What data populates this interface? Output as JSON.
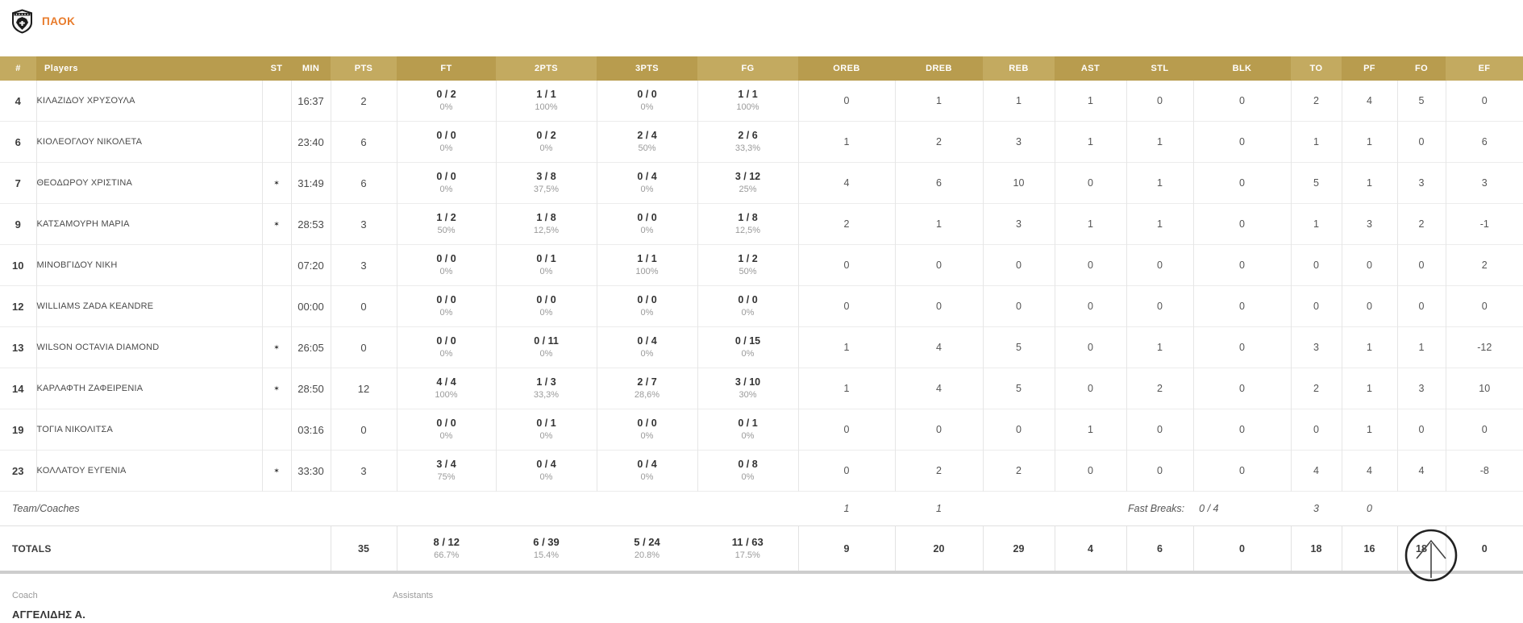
{
  "team": {
    "name": "ΠΑΟΚ"
  },
  "icons": {
    "team_logo": "paok-crest-icon",
    "annotation": "up-arrow-cursor-icon"
  },
  "colors": {
    "header_gold": "#b89c4e",
    "header_gold_light": "#c3aa60",
    "accent_orange": "#e87b2b"
  },
  "starter_mark": "✶",
  "table": {
    "columns": [
      {
        "key": "num",
        "label": "#"
      },
      {
        "key": "name",
        "label": "Players"
      },
      {
        "key": "st",
        "label": "ST"
      },
      {
        "key": "min",
        "label": "MIN"
      },
      {
        "key": "pts",
        "label": "PTS"
      },
      {
        "key": "ft",
        "label": "FT"
      },
      {
        "key": "p2",
        "label": "2PTS"
      },
      {
        "key": "p3",
        "label": "3PTS"
      },
      {
        "key": "fg",
        "label": "FG"
      },
      {
        "key": "oreb",
        "label": "OREB"
      },
      {
        "key": "dreb",
        "label": "DREB"
      },
      {
        "key": "reb",
        "label": "REB"
      },
      {
        "key": "ast",
        "label": "AST"
      },
      {
        "key": "stl",
        "label": "STL"
      },
      {
        "key": "blk",
        "label": "BLK"
      },
      {
        "key": "to",
        "label": "TO"
      },
      {
        "key": "pf",
        "label": "PF"
      },
      {
        "key": "fo",
        "label": "FO"
      },
      {
        "key": "ef",
        "label": "EF"
      }
    ],
    "players": [
      {
        "num": "4",
        "name": "ΚΙΛΑΖΙΔΟΥ ΧΡΥΣΟΥΛΑ",
        "starter": false,
        "min": "16:37",
        "pts": "2",
        "ft": {
          "v": "0 / 2",
          "p": "0%"
        },
        "p2": {
          "v": "1 / 1",
          "p": "100%"
        },
        "p3": {
          "v": "0 / 0",
          "p": "0%"
        },
        "fg": {
          "v": "1 / 1",
          "p": "100%"
        },
        "oreb": "0",
        "dreb": "1",
        "reb": "1",
        "ast": "1",
        "stl": "0",
        "blk": "0",
        "to": "2",
        "pf": "4",
        "fo": "5",
        "ef": "0"
      },
      {
        "num": "6",
        "name": "ΚΙΟΛΕΟΓΛΟΥ ΝΙΚΟΛΕΤΑ",
        "starter": false,
        "min": "23:40",
        "pts": "6",
        "ft": {
          "v": "0 / 0",
          "p": "0%"
        },
        "p2": {
          "v": "0 / 2",
          "p": "0%"
        },
        "p3": {
          "v": "2 / 4",
          "p": "50%"
        },
        "fg": {
          "v": "2 / 6",
          "p": "33,3%"
        },
        "oreb": "1",
        "dreb": "2",
        "reb": "3",
        "ast": "1",
        "stl": "1",
        "blk": "0",
        "to": "1",
        "pf": "1",
        "fo": "0",
        "ef": "6"
      },
      {
        "num": "7",
        "name": "ΘΕΟΔΩΡΟΥ ΧΡΙΣΤΙΝΑ",
        "starter": true,
        "min": "31:49",
        "pts": "6",
        "ft": {
          "v": "0 / 0",
          "p": "0%"
        },
        "p2": {
          "v": "3 / 8",
          "p": "37,5%"
        },
        "p3": {
          "v": "0 / 4",
          "p": "0%"
        },
        "fg": {
          "v": "3 / 12",
          "p": "25%"
        },
        "oreb": "4",
        "dreb": "6",
        "reb": "10",
        "ast": "0",
        "stl": "1",
        "blk": "0",
        "to": "5",
        "pf": "1",
        "fo": "3",
        "ef": "3"
      },
      {
        "num": "9",
        "name": "ΚΑΤΣΑΜΟΥΡΗ ΜΑΡΙΑ",
        "starter": true,
        "min": "28:53",
        "pts": "3",
        "ft": {
          "v": "1 / 2",
          "p": "50%"
        },
        "p2": {
          "v": "1 / 8",
          "p": "12,5%"
        },
        "p3": {
          "v": "0 / 0",
          "p": "0%"
        },
        "fg": {
          "v": "1 / 8",
          "p": "12,5%"
        },
        "oreb": "2",
        "dreb": "1",
        "reb": "3",
        "ast": "1",
        "stl": "1",
        "blk": "0",
        "to": "1",
        "pf": "3",
        "fo": "2",
        "ef": "-1"
      },
      {
        "num": "10",
        "name": "ΜΙΝΟΒΓΙΔΟΥ ΝΙΚΗ",
        "starter": false,
        "min": "07:20",
        "pts": "3",
        "ft": {
          "v": "0 / 0",
          "p": "0%"
        },
        "p2": {
          "v": "0 / 1",
          "p": "0%"
        },
        "p3": {
          "v": "1 / 1",
          "p": "100%"
        },
        "fg": {
          "v": "1 / 2",
          "p": "50%"
        },
        "oreb": "0",
        "dreb": "0",
        "reb": "0",
        "ast": "0",
        "stl": "0",
        "blk": "0",
        "to": "0",
        "pf": "0",
        "fo": "0",
        "ef": "2"
      },
      {
        "num": "12",
        "name": "WILLIAMS ZADA KEANDRE",
        "starter": false,
        "min": "00:00",
        "pts": "0",
        "ft": {
          "v": "0 / 0",
          "p": "0%"
        },
        "p2": {
          "v": "0 / 0",
          "p": "0%"
        },
        "p3": {
          "v": "0 / 0",
          "p": "0%"
        },
        "fg": {
          "v": "0 / 0",
          "p": "0%"
        },
        "oreb": "0",
        "dreb": "0",
        "reb": "0",
        "ast": "0",
        "stl": "0",
        "blk": "0",
        "to": "0",
        "pf": "0",
        "fo": "0",
        "ef": "0"
      },
      {
        "num": "13",
        "name": "WILSON OCTAVIA DIAMOND",
        "starter": true,
        "min": "26:05",
        "pts": "0",
        "ft": {
          "v": "0 / 0",
          "p": "0%"
        },
        "p2": {
          "v": "0 / 11",
          "p": "0%"
        },
        "p3": {
          "v": "0 / 4",
          "p": "0%"
        },
        "fg": {
          "v": "0 / 15",
          "p": "0%"
        },
        "oreb": "1",
        "dreb": "4",
        "reb": "5",
        "ast": "0",
        "stl": "1",
        "blk": "0",
        "to": "3",
        "pf": "1",
        "fo": "1",
        "ef": "-12"
      },
      {
        "num": "14",
        "name": "ΚΑΡΛΑΦΤΗ ΖΑΦΕΙΡΕΝΙΑ",
        "starter": true,
        "min": "28:50",
        "pts": "12",
        "ft": {
          "v": "4 / 4",
          "p": "100%"
        },
        "p2": {
          "v": "1 / 3",
          "p": "33,3%"
        },
        "p3": {
          "v": "2 / 7",
          "p": "28,6%"
        },
        "fg": {
          "v": "3 / 10",
          "p": "30%"
        },
        "oreb": "1",
        "dreb": "4",
        "reb": "5",
        "ast": "0",
        "stl": "2",
        "blk": "0",
        "to": "2",
        "pf": "1",
        "fo": "3",
        "ef": "10"
      },
      {
        "num": "19",
        "name": "ΤΟΓΙΑ ΝΙΚΟΛΙΤΣΑ",
        "starter": false,
        "min": "03:16",
        "pts": "0",
        "ft": {
          "v": "0 / 0",
          "p": "0%"
        },
        "p2": {
          "v": "0 / 1",
          "p": "0%"
        },
        "p3": {
          "v": "0 / 0",
          "p": "0%"
        },
        "fg": {
          "v": "0 / 1",
          "p": "0%"
        },
        "oreb": "0",
        "dreb": "0",
        "reb": "0",
        "ast": "1",
        "stl": "0",
        "blk": "0",
        "to": "0",
        "pf": "1",
        "fo": "0",
        "ef": "0"
      },
      {
        "num": "23",
        "name": "ΚΟΛΛΑΤΟΥ ΕΥΓΕΝΙΑ",
        "starter": true,
        "min": "33:30",
        "pts": "3",
        "ft": {
          "v": "3 / 4",
          "p": "75%"
        },
        "p2": {
          "v": "0 / 4",
          "p": "0%"
        },
        "p3": {
          "v": "0 / 4",
          "p": "0%"
        },
        "fg": {
          "v": "0 / 8",
          "p": "0%"
        },
        "oreb": "0",
        "dreb": "2",
        "reb": "2",
        "ast": "0",
        "stl": "0",
        "blk": "0",
        "to": "4",
        "pf": "4",
        "fo": "4",
        "ef": "-8"
      }
    ],
    "team_row": {
      "label": "Team/Coaches",
      "oreb": "1",
      "dreb": "1",
      "fast_breaks_label": "Fast Breaks:",
      "fast_breaks_value": "0 / 4",
      "to": "3",
      "pf": "0"
    },
    "totals": {
      "label": "TOTALS",
      "pts": "35",
      "ft": {
        "v": "8 / 12",
        "p": "66.7%"
      },
      "p2": {
        "v": "6 / 39",
        "p": "15.4%"
      },
      "p3": {
        "v": "5 / 24",
        "p": "20.8%"
      },
      "fg": {
        "v": "11 / 63",
        "p": "17.5%"
      },
      "oreb": "9",
      "dreb": "20",
      "reb": "29",
      "ast": "4",
      "stl": "6",
      "blk": "0",
      "to": "18",
      "pf": "16",
      "fo": "18",
      "ef": "0"
    }
  },
  "footer": {
    "coach_label": "Coach",
    "coach_name": "ΑΓΓΕΛΙΔΗΣ Α.",
    "assistants_label": "Assistants"
  }
}
